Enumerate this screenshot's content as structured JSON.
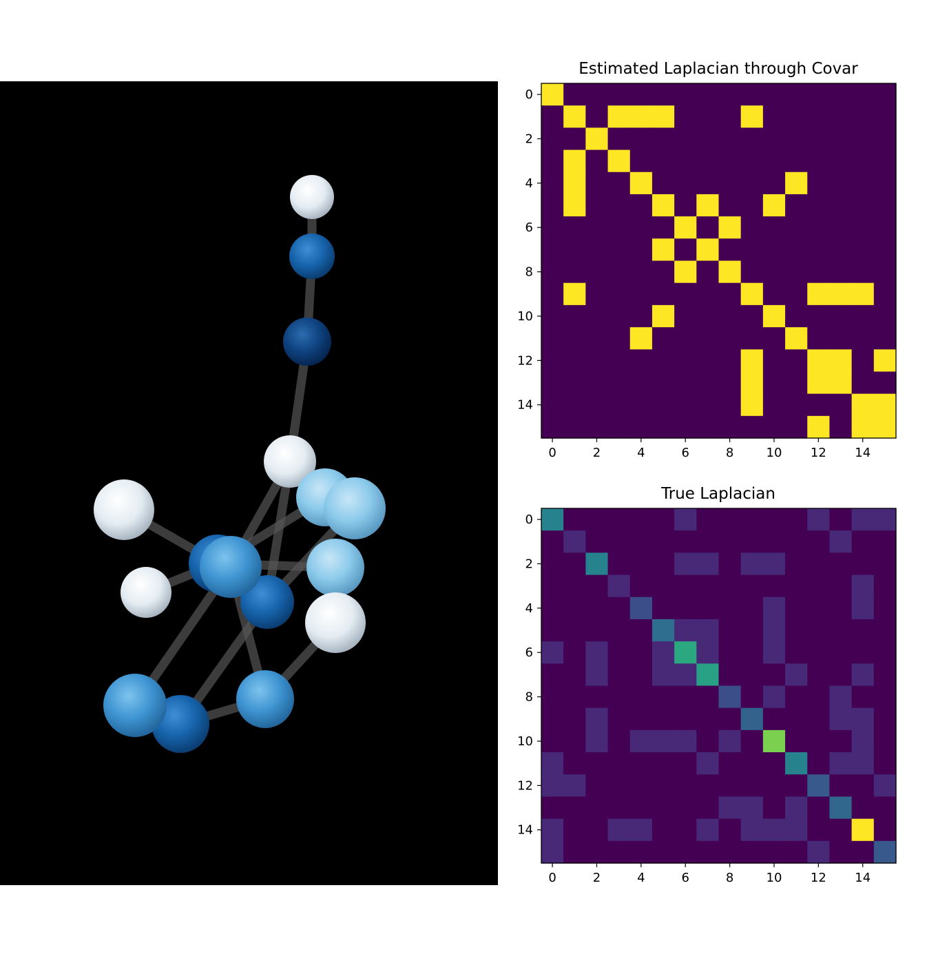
{
  "molecule_view": {
    "background": "#000000",
    "atom_colors": {
      "white": "#e8eef4",
      "light_blue": "#8fcaea",
      "mid_blue": "#3a8ccd",
      "dark_blue": "#1561a8",
      "navy": "#0d3f78"
    }
  },
  "chart_data": [
    {
      "type": "heatmap",
      "title": "Estimated Laplacian through Covar",
      "xticks": [
        0,
        2,
        4,
        6,
        8,
        10,
        12,
        14
      ],
      "yticks": [
        0,
        2,
        4,
        6,
        8,
        10,
        12,
        14
      ],
      "xlim": [
        -0.5,
        15.5
      ],
      "ylim": [
        15.5,
        -0.5
      ],
      "colormap": "viridis",
      "matrix": [
        [
          1,
          0,
          0,
          0,
          0,
          0,
          0,
          0,
          0,
          0,
          0,
          0,
          0,
          0,
          0,
          0
        ],
        [
          0,
          1,
          0,
          1,
          1,
          1,
          0,
          0,
          0,
          1,
          0,
          0,
          0,
          0,
          0,
          0
        ],
        [
          0,
          0,
          1,
          0,
          0,
          0,
          0,
          0,
          0,
          0,
          0,
          0,
          0,
          0,
          0,
          0
        ],
        [
          0,
          1,
          0,
          1,
          0,
          0,
          0,
          0,
          0,
          0,
          0,
          0,
          0,
          0,
          0,
          0
        ],
        [
          0,
          1,
          0,
          0,
          1,
          0,
          0,
          0,
          0,
          0,
          0,
          1,
          0,
          0,
          0,
          0
        ],
        [
          0,
          1,
          0,
          0,
          0,
          1,
          0,
          1,
          0,
          0,
          1,
          0,
          0,
          0,
          0,
          0
        ],
        [
          0,
          0,
          0,
          0,
          0,
          0,
          1,
          0,
          1,
          0,
          0,
          0,
          0,
          0,
          0,
          0
        ],
        [
          0,
          0,
          0,
          0,
          0,
          1,
          0,
          1,
          0,
          0,
          0,
          0,
          0,
          0,
          0,
          0
        ],
        [
          0,
          0,
          0,
          0,
          0,
          0,
          1,
          0,
          1,
          0,
          0,
          0,
          0,
          0,
          0,
          0
        ],
        [
          0,
          1,
          0,
          0,
          0,
          0,
          0,
          0,
          0,
          1,
          0,
          0,
          1,
          1,
          1,
          0
        ],
        [
          0,
          0,
          0,
          0,
          0,
          1,
          0,
          0,
          0,
          0,
          1,
          0,
          0,
          0,
          0,
          0
        ],
        [
          0,
          0,
          0,
          0,
          1,
          0,
          0,
          0,
          0,
          0,
          0,
          1,
          0,
          0,
          0,
          0
        ],
        [
          0,
          0,
          0,
          0,
          0,
          0,
          0,
          0,
          0,
          1,
          0,
          0,
          1,
          1,
          0,
          1
        ],
        [
          0,
          0,
          0,
          0,
          0,
          0,
          0,
          0,
          0,
          1,
          0,
          0,
          1,
          1,
          0,
          0
        ],
        [
          0,
          0,
          0,
          0,
          0,
          0,
          0,
          0,
          0,
          1,
          0,
          0,
          0,
          0,
          1,
          1
        ],
        [
          0,
          0,
          0,
          0,
          0,
          0,
          0,
          0,
          0,
          0,
          0,
          0,
          1,
          0,
          1,
          1
        ]
      ]
    },
    {
      "type": "heatmap",
      "title": "True Laplacian",
      "xticks": [
        0,
        2,
        4,
        6,
        8,
        10,
        12,
        14
      ],
      "yticks": [
        0,
        2,
        4,
        6,
        8,
        10,
        12,
        14
      ],
      "xlim": [
        -0.5,
        15.5
      ],
      "ylim": [
        15.5,
        -0.5
      ],
      "colormap": "viridis",
      "matrix": [
        [
          0.55,
          0,
          0,
          0,
          0,
          0,
          0.15,
          0,
          0,
          0,
          0,
          0,
          0.15,
          0,
          0.15,
          0.15
        ],
        [
          0,
          0.15,
          0,
          0,
          0,
          0,
          0,
          0,
          0,
          0,
          0,
          0,
          0,
          0.15,
          0,
          0
        ],
        [
          0,
          0,
          0.55,
          0,
          0,
          0,
          0.15,
          0.15,
          0,
          0.15,
          0.15,
          0,
          0,
          0,
          0,
          0
        ],
        [
          0,
          0,
          0,
          0.15,
          0,
          0,
          0,
          0,
          0,
          0,
          0,
          0,
          0,
          0,
          0.15,
          0
        ],
        [
          0,
          0,
          0,
          0,
          0.3,
          0,
          0,
          0,
          0,
          0,
          0.15,
          0,
          0,
          0,
          0.15,
          0
        ],
        [
          0,
          0,
          0,
          0,
          0,
          0.45,
          0.15,
          0.15,
          0,
          0,
          0.15,
          0,
          0,
          0,
          0,
          0
        ],
        [
          0.15,
          0,
          0.15,
          0,
          0,
          0.15,
          0.7,
          0.15,
          0,
          0,
          0.15,
          0,
          0,
          0,
          0,
          0
        ],
        [
          0,
          0,
          0.15,
          0,
          0,
          0.15,
          0.15,
          0.68,
          0,
          0,
          0,
          0.15,
          0,
          0,
          0.15,
          0
        ],
        [
          0,
          0,
          0,
          0,
          0,
          0,
          0,
          0,
          0.3,
          0,
          0.15,
          0,
          0,
          0.15,
          0,
          0
        ],
        [
          0,
          0,
          0.15,
          0,
          0,
          0,
          0,
          0,
          0,
          0.4,
          0,
          0,
          0,
          0.15,
          0.15,
          0
        ],
        [
          0,
          0,
          0.15,
          0,
          0.15,
          0.15,
          0.15,
          0,
          0.15,
          0,
          0.85,
          0,
          0,
          0,
          0.15,
          0
        ],
        [
          0.15,
          0,
          0,
          0,
          0,
          0,
          0,
          0.15,
          0,
          0,
          0,
          0.55,
          0,
          0.15,
          0.15,
          0
        ],
        [
          0.15,
          0.15,
          0,
          0,
          0,
          0,
          0,
          0,
          0,
          0,
          0,
          0,
          0.35,
          0,
          0,
          0.15
        ],
        [
          0,
          0,
          0,
          0,
          0,
          0,
          0,
          0,
          0.15,
          0.15,
          0,
          0.15,
          0,
          0.42,
          0,
          0
        ],
        [
          0.15,
          0,
          0,
          0.15,
          0.15,
          0,
          0,
          0.15,
          0,
          0.15,
          0.15,
          0.15,
          0,
          0,
          1,
          0
        ],
        [
          0.15,
          0,
          0,
          0,
          0,
          0,
          0,
          0,
          0,
          0,
          0,
          0,
          0.15,
          0,
          0,
          0.35
        ]
      ]
    }
  ]
}
